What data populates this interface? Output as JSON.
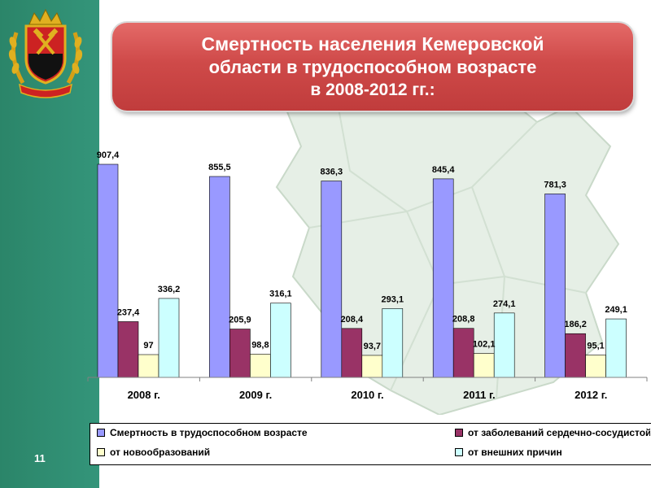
{
  "slide": {
    "title_line1": "Смертность населения Кемеровской",
    "title_line2": "области в трудоспособном возрасте",
    "title_line3": "в 2008-2012 гг.:",
    "slide_number": "11"
  },
  "colors": {
    "sidebar": "#2e8a6e",
    "banner": "#cf4a49",
    "series": [
      "#9999ff",
      "#993366",
      "#ffffcc",
      "#ccffff"
    ]
  },
  "chart_data": {
    "type": "bar",
    "categories": [
      "2008 г.",
      "2009 г.",
      "2010 г.",
      "2011 г.",
      "2012 г."
    ],
    "series": [
      {
        "name": "Смертность в трудоспособном возрасте",
        "values": [
          907.4,
          855.5,
          836.3,
          845.4,
          781.3
        ],
        "labels": [
          "907,4",
          "855,5",
          "836,3",
          "845,4",
          "781,3"
        ]
      },
      {
        "name": "от заболеваний сердечно-сосудистой системы",
        "values": [
          237.4,
          205.9,
          208.4,
          208.8,
          186.2
        ],
        "labels": [
          "237,4",
          "205,9",
          "208,4",
          "208,8",
          "186,2"
        ]
      },
      {
        "name": "от новообразований",
        "values": [
          97,
          98.8,
          93.7,
          102.1,
          95.1
        ],
        "labels": [
          "97",
          "98,8",
          "93,7",
          "102,1",
          "95,1"
        ]
      },
      {
        "name": "от внешних причин",
        "values": [
          336.2,
          316.1,
          293.1,
          274.1,
          249.1
        ],
        "labels": [
          "336,2",
          "316,1",
          "293,1",
          "274,1",
          "249,1"
        ]
      }
    ],
    "title": "",
    "xlabel": "",
    "ylabel": "",
    "ylim": [
      0,
      907.4
    ],
    "grid": false,
    "legend": "bottom"
  }
}
